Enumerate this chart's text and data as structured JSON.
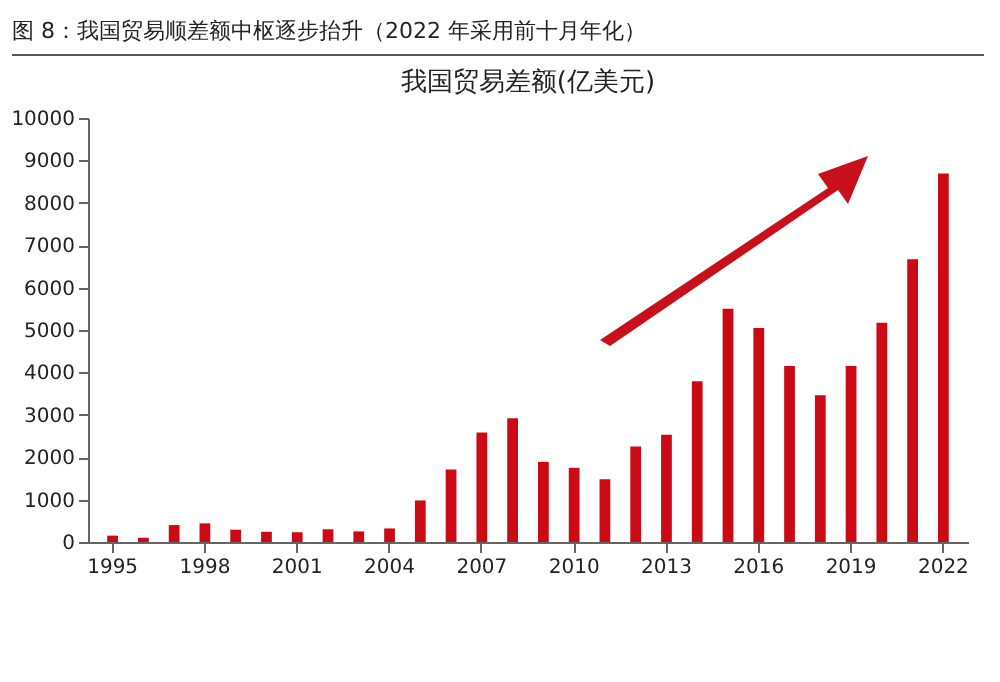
{
  "chart_data": {
    "type": "bar",
    "title": "图 8：我国贸易顺差额中枢逐步抬升（2022 年采用前十月年化）",
    "subtitle": "我国贸易差额(亿美元)",
    "categories": [
      "1995",
      null,
      null,
      "1998",
      null,
      null,
      "2001",
      null,
      null,
      "2004",
      null,
      null,
      "2007",
      null,
      null,
      "2010",
      null,
      null,
      "2013",
      null,
      null,
      "2016",
      null,
      null,
      "2019",
      null,
      null,
      "2022"
    ],
    "values": [
      150,
      100,
      400,
      440,
      290,
      240,
      230,
      300,
      250,
      320,
      980,
      1710,
      2580,
      2920,
      1890,
      1750,
      1480,
      2250,
      2530,
      3790,
      5500,
      5050,
      4150,
      3460,
      4150,
      5170,
      6670,
      8690
    ],
    "color": "#cc0a14",
    "ylim": [
      0,
      10000
    ],
    "yticks": [
      0,
      1000,
      2000,
      3000,
      4000,
      5000,
      6000,
      7000,
      8000,
      9000,
      10000
    ],
    "grid": false
  }
}
